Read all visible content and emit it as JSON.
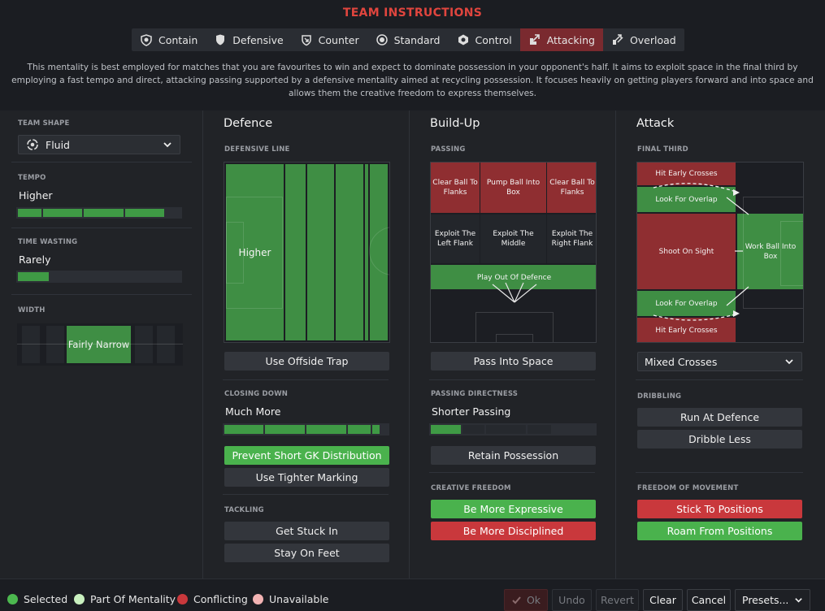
{
  "title": "TEAM INSTRUCTIONS",
  "tabs": [
    {
      "label": "Contain",
      "icon": "contain-icon"
    },
    {
      "label": "Defensive",
      "icon": "shield-icon"
    },
    {
      "label": "Counter",
      "icon": "counter-icon"
    },
    {
      "label": "Standard",
      "icon": "standard-icon"
    },
    {
      "label": "Control",
      "icon": "control-icon"
    },
    {
      "label": "Attacking",
      "icon": "attacking-icon",
      "active": true
    },
    {
      "label": "Overload",
      "icon": "overload-icon"
    }
  ],
  "description": "This mentality is best employed for matches that you are favourites to win and expect to dominate possession in your opponent's half. It aims to exploit space in the final third by employing a fast tempo and direct, attacking passing supported by a defensive mentality aimed at recycling possession. It focuses heavily on getting players forward and into space and allows them the creative freedom to express themselves.",
  "left": {
    "team_shape_label": "TEAM SHAPE",
    "team_shape_value": "Fluid",
    "tempo_label": "TEMPO",
    "tempo_value": "Higher",
    "tempo_level": 0.875,
    "time_wasting_label": "TIME WASTING",
    "time_wasting_value": "Rarely",
    "time_wasting_level": 0.2,
    "width_label": "WIDTH",
    "width_value": "Fairly Narrow"
  },
  "defence": {
    "heading": "Defence",
    "line_label": "DEFENSIVE LINE",
    "line_value": "Higher",
    "offside_button": "Use Offside Trap",
    "closing_label": "CLOSING DOWN",
    "closing_value": "Much More",
    "closing_level": 0.9,
    "prevent_gk_button": "Prevent Short GK Distribution",
    "tighter_marking_button": "Use Tighter Marking",
    "tackling_label": "TACKLING",
    "get_stuck_in_button": "Get Stuck In",
    "stay_on_feet_button": "Stay On Feet"
  },
  "buildup": {
    "heading": "Build-Up",
    "passing_label": "PASSING",
    "zones": {
      "clear_left": "Clear Ball To Flanks",
      "pump": "Pump Ball Into Box",
      "clear_right": "Clear Ball To Flanks",
      "exploit_left": "Exploit The Left Flank",
      "exploit_middle": "Exploit The Middle",
      "exploit_right": "Exploit The Right Flank",
      "play_out": "Play Out Of Defence"
    },
    "pass_space_button": "Pass Into Space",
    "directness_label": "PASSING DIRECTNESS",
    "directness_value": "Shorter Passing",
    "directness_level": 0.2,
    "retain_button": "Retain Possession",
    "creative_label": "CREATIVE FREEDOM",
    "expressive_button": "Be More Expressive",
    "disciplined_button": "Be More Disciplined"
  },
  "attack": {
    "heading": "Attack",
    "final_third_label": "FINAL THIRD",
    "zones": {
      "early_top": "Hit Early Crosses",
      "overlap_top": "Look For Overlap",
      "shoot": "Shoot On Sight",
      "work_ball": "Work Ball Into Box",
      "overlap_bottom": "Look For Overlap",
      "early_bottom": "Hit Early Crosses"
    },
    "crosses_value": "Mixed Crosses",
    "dribbling_label": "DRIBBLING",
    "run_at_defence_button": "Run At Defence",
    "dribble_less_button": "Dribble Less",
    "freedom_label": "FREEDOM OF MOVEMENT",
    "stick_button": "Stick To Positions",
    "roam_button": "Roam From Positions"
  },
  "legend": [
    {
      "label": "Selected",
      "color": "#4cb84f"
    },
    {
      "label": "Part Of Mentality",
      "color": "#c9f0bf"
    },
    {
      "label": "Conflicting",
      "color": "#c9383c"
    },
    {
      "label": "Unavailable",
      "color": "#f2b3b3"
    }
  ],
  "footer": {
    "ok": "Ok",
    "undo": "Undo",
    "revert": "Revert",
    "clear": "Clear",
    "cancel": "Cancel",
    "presets": "Presets..."
  },
  "colors": {
    "accent": "#e0453e",
    "green": "#4ab24d",
    "red": "#c9383c",
    "pitch_green": "#3f8e44",
    "pitch_red": "#8f2e31"
  }
}
